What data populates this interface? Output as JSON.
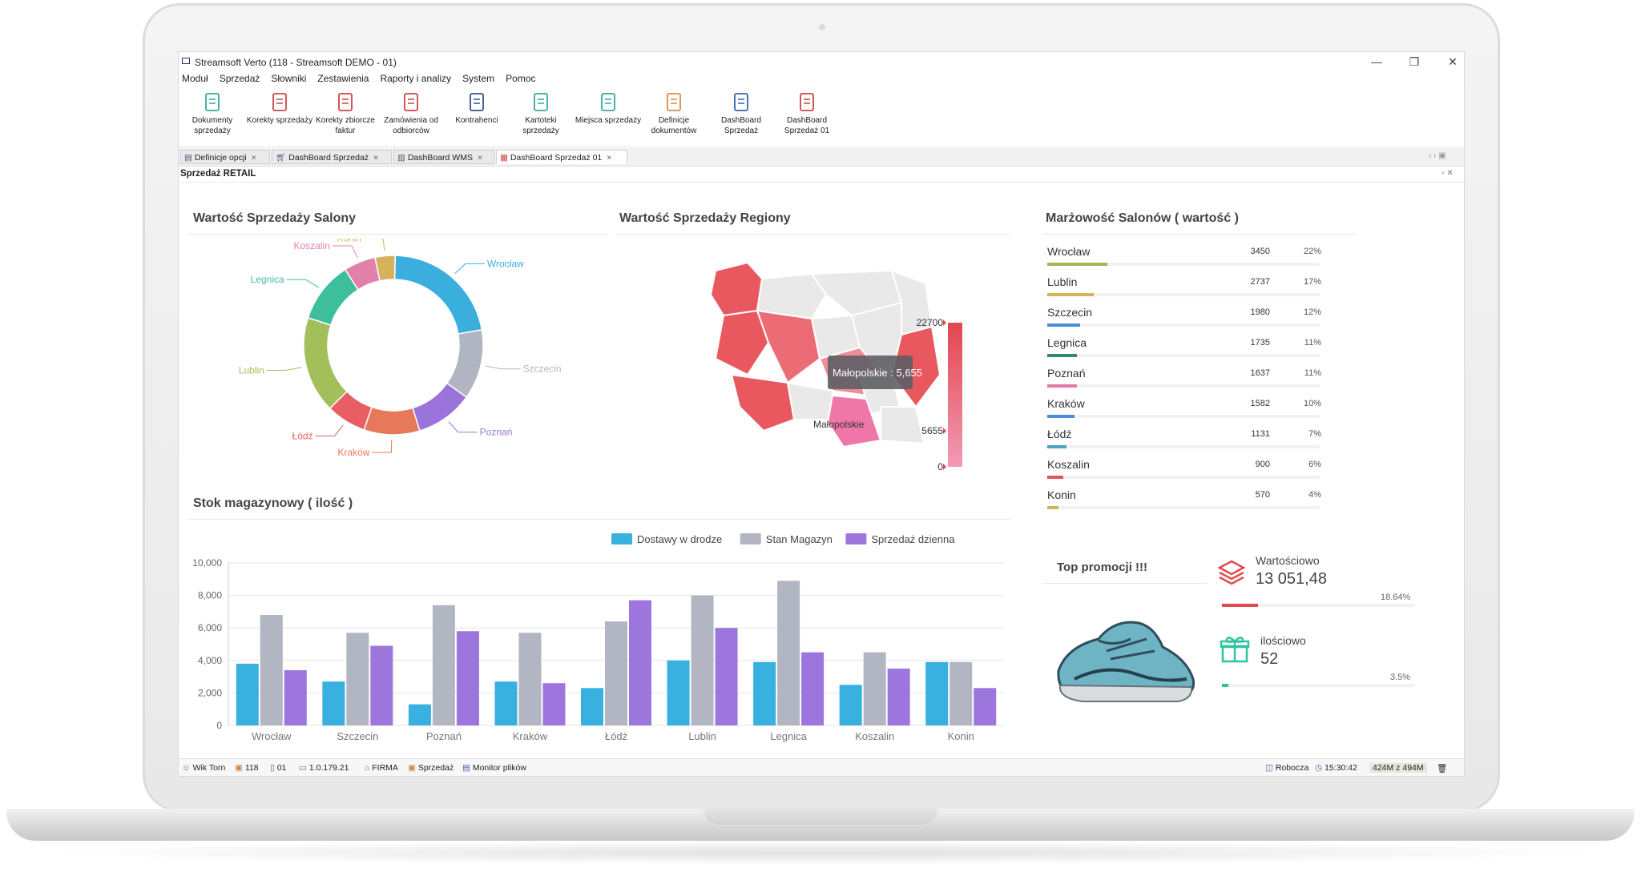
{
  "window": {
    "title": "Streamsoft Verto (118 - Streamsoft DEMO - 01)",
    "minimize": "—",
    "restore": "❐",
    "close": "✕"
  },
  "menu": [
    "Moduł",
    "Sprzedaż",
    "Słowniki",
    "Zestawienia",
    "Raporty i analizy",
    "System",
    "Pomoc"
  ],
  "ribbon": [
    {
      "label": "Dokumenty sprzedaży",
      "icon": "sales-document-icon"
    },
    {
      "label": "Korekty sprzedaży",
      "icon": "sales-correction-icon"
    },
    {
      "label": "Korekty zbiorcze faktur",
      "icon": "invoice-correction-icon"
    },
    {
      "label": "Zamówienia od odbiorców",
      "icon": "customer-order-icon"
    },
    {
      "label": "Kontrahenci",
      "icon": "contractors-icon"
    },
    {
      "label": "Kartoteki sprzedaży",
      "icon": "sales-records-icon"
    },
    {
      "label": "Miejsca sprzedaży",
      "icon": "sales-places-icon"
    },
    {
      "label": "Definicje dokumentów",
      "icon": "document-definitions-icon"
    },
    {
      "label": "DashBoard Sprzedaż",
      "icon": "cart-icon"
    },
    {
      "label": "DashBoard Sprzedaż 01",
      "icon": "store-icon"
    }
  ],
  "tabs": [
    {
      "label": "Definicje opcji",
      "close": "×"
    },
    {
      "label": "DashBoard Sprzedaż",
      "close": "×"
    },
    {
      "label": "DashBoard WMS",
      "close": "×"
    },
    {
      "label": "DashBoard Sprzedaż 01",
      "close": "×"
    }
  ],
  "panel_title": "Sprzedaż RETAIL",
  "sections": {
    "donut_title": "Wartość Sprzedaży Salony",
    "map_title": "Wartość Sprzedaży Regiony",
    "margin_title": "Marżowość Salonów ( wartość )",
    "stock_title": "Stok magazynowy ( ilość )",
    "promo_title": "Top promocji !!!"
  },
  "chart_data": [
    {
      "type": "pie",
      "title": "Wartość Sprzedaży Salony",
      "categories": [
        "Wrocław",
        "Szczecin",
        "Poznań",
        "Kraków",
        "Łódź",
        "Lublin",
        "Legnica",
        "Koszalin",
        "Konin"
      ],
      "values": [
        3450,
        1980,
        1637,
        1582,
        1131,
        2737,
        1735,
        900,
        570
      ],
      "colors": [
        "#3aaedc",
        "#b1b5c1",
        "#9b74db",
        "#e8785a",
        "#e85e63",
        "#a3bf5a",
        "#3dbf9e",
        "#e37fab",
        "#d5b35c"
      ]
    },
    {
      "type": "heatmap",
      "title": "Wartość Sprzedaży Regiony",
      "scale_max": 22700,
      "scale_mid": 5655,
      "scale_min": 0,
      "scale_max_label": "22700",
      "scale_mid_label": "5655",
      "scale_min_label": "0",
      "region_label": "Małopolskie",
      "tooltip": "Małopolskie : 5,655"
    },
    {
      "type": "bar",
      "title": "Stok magazynowy ( ilość )",
      "categories": [
        "Wrocław",
        "Szczecin",
        "Poznań",
        "Kraków",
        "Łódź",
        "Lublin",
        "Legnica",
        "Koszalin",
        "Konin"
      ],
      "series": [
        {
          "name": "Dostawy w drodze",
          "color": "#38b0e0",
          "values": [
            3800,
            2700,
            1300,
            2700,
            2300,
            4000,
            3900,
            2500,
            3900
          ]
        },
        {
          "name": "Stan Magazyn",
          "color": "#b2b6c3",
          "values": [
            6800,
            5700,
            7400,
            5700,
            6400,
            8000,
            8900,
            4500,
            3900
          ]
        },
        {
          "name": "Sprzedaż dzienna",
          "color": "#9c76dc",
          "values": [
            3400,
            4900,
            5800,
            2600,
            7700,
            6000,
            4500,
            3500,
            2300
          ]
        }
      ],
      "ylim": [
        0,
        10000
      ],
      "yticks": [
        "10,000",
        "8,000",
        "6,000",
        "4,000",
        "2,000",
        "0"
      ]
    },
    {
      "type": "table",
      "title": "Marżowość Salonów ( wartość )",
      "rows": [
        {
          "name": "Wrocław",
          "value": "3450",
          "pct": "22%",
          "fraction": 0.22,
          "color": "#a3b557"
        },
        {
          "name": "Lublin",
          "value": "2737",
          "pct": "17%",
          "fraction": 0.17,
          "color": "#d2b45c"
        },
        {
          "name": "Szczecin",
          "value": "1980",
          "pct": "12%",
          "fraction": 0.12,
          "color": "#4c8fd6"
        },
        {
          "name": "Legnica",
          "value": "1735",
          "pct": "11%",
          "fraction": 0.11,
          "color": "#2e8b6f"
        },
        {
          "name": "Poznań",
          "value": "1637",
          "pct": "11%",
          "fraction": 0.11,
          "color": "#e07aa8"
        },
        {
          "name": "Kraków",
          "value": "1582",
          "pct": "10%",
          "fraction": 0.1,
          "color": "#4c8fd6"
        },
        {
          "name": "Łódź",
          "value": "1131",
          "pct": "7%",
          "fraction": 0.07,
          "color": "#4ba3c7"
        },
        {
          "name": "Koszalin",
          "value": "900",
          "pct": "6%",
          "fraction": 0.06,
          "color": "#e05555"
        },
        {
          "name": "Konin",
          "value": "570",
          "pct": "4%",
          "fraction": 0.04,
          "color": "#d2b45c"
        }
      ]
    }
  ],
  "promo": {
    "value_label": "Wartościowo",
    "value": "13 051,48",
    "value_pct": "18.64%",
    "value_fraction": 0.1864,
    "qty_label": "ilościowo",
    "qty": "52",
    "qty_pct": "3.5%",
    "qty_fraction": 0.035,
    "accent_red": "#e34a4f",
    "accent_green": "#2ec4a0"
  },
  "status": {
    "user": "Wik Torn",
    "company_no": "118",
    "branch": "01",
    "ip": "1.0.179.21",
    "firm": "FIRMA",
    "module": "Sprzedaż",
    "monitor": "Monitor plików",
    "db": "Robocza",
    "time": "15:30:42",
    "memory": "424M z 494M"
  }
}
